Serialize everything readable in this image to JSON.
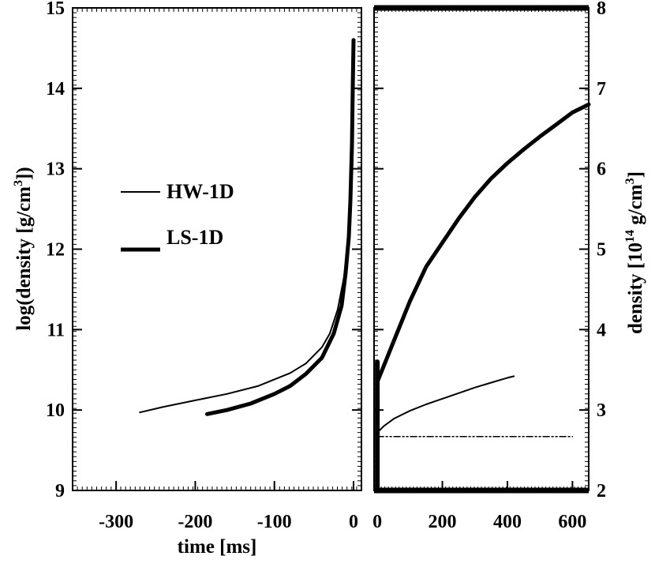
{
  "chart_data": [
    {
      "type": "line",
      "xlabel": "time [ms]",
      "ylabel": "log(density [g/cm3])",
      "ylabel_parts": {
        "pre": "log(density [g/cm",
        "sup": "3",
        "post": "])"
      },
      "xlim": [
        -355,
        10
      ],
      "ylim": [
        9,
        15
      ],
      "xticks": [
        -300,
        -200,
        -100,
        0
      ],
      "xtick_labels": [
        "-300",
        "-200",
        "-100",
        "0"
      ],
      "yticks": [
        9,
        10,
        11,
        12,
        13,
        14,
        15
      ],
      "ytick_labels": [
        "9",
        "10",
        "11",
        "12",
        "13",
        "14",
        "15"
      ],
      "legend_position": "center-left",
      "series": [
        {
          "name": "HW-1D",
          "style": "thin",
          "x": [
            -270,
            -240,
            -200,
            -160,
            -120,
            -80,
            -60,
            -40,
            -30,
            -20,
            -12,
            -8,
            -5,
            -3,
            -2,
            -1
          ],
          "y": [
            9.97,
            10.04,
            10.12,
            10.2,
            10.3,
            10.46,
            10.58,
            10.78,
            10.95,
            11.25,
            11.65,
            12.0,
            12.4,
            12.75,
            12.95,
            13.1
          ]
        },
        {
          "name": "LS-1D",
          "style": "thick",
          "x": [
            -185,
            -160,
            -130,
            -100,
            -80,
            -60,
            -40,
            -25,
            -15,
            -10,
            -6,
            -4,
            -2,
            -1,
            0
          ],
          "y": [
            9.95,
            10.0,
            10.08,
            10.2,
            10.3,
            10.45,
            10.65,
            10.95,
            11.3,
            11.7,
            12.15,
            12.6,
            13.3,
            14.0,
            14.6
          ]
        }
      ]
    },
    {
      "type": "line",
      "xlabel": "",
      "ylabel": "density [10^14 g/cm^3]",
      "ylabel_parts": {
        "pre": "density [10",
        "sup1": "14",
        "mid": " g/cm",
        "sup2": "3",
        "post": "]"
      },
      "xlim": [
        -10,
        650
      ],
      "ylim": [
        2,
        8
      ],
      "xticks": [
        0,
        200,
        400,
        600
      ],
      "xtick_labels": [
        "0",
        "200",
        "400",
        "600"
      ],
      "yticks": [
        2,
        3,
        4,
        5,
        6,
        7,
        8
      ],
      "ytick_labels": [
        "2",
        "3",
        "4",
        "5",
        "6",
        "7",
        "8"
      ],
      "series": [
        {
          "style": "thick",
          "x": [
            0,
            20,
            50,
            100,
            150,
            200,
            250,
            300,
            350,
            400,
            450,
            500,
            550,
            600,
            650
          ],
          "y": [
            3.35,
            3.55,
            3.85,
            4.35,
            4.78,
            5.08,
            5.38,
            5.65,
            5.88,
            6.07,
            6.24,
            6.4,
            6.55,
            6.7,
            6.8
          ]
        },
        {
          "style": "thin",
          "x": [
            0,
            20,
            50,
            100,
            150,
            200,
            250,
            300,
            350,
            400,
            420
          ],
          "y": [
            2.72,
            2.8,
            2.89,
            2.99,
            3.07,
            3.14,
            3.21,
            3.28,
            3.34,
            3.4,
            3.42
          ]
        },
        {
          "style": "dash-dot",
          "x": [
            0,
            600
          ],
          "y": [
            2.67,
            2.67
          ]
        },
        {
          "style": "spike",
          "x": [
            0,
            0
          ],
          "y": [
            2.0,
            3.6
          ]
        }
      ]
    }
  ]
}
